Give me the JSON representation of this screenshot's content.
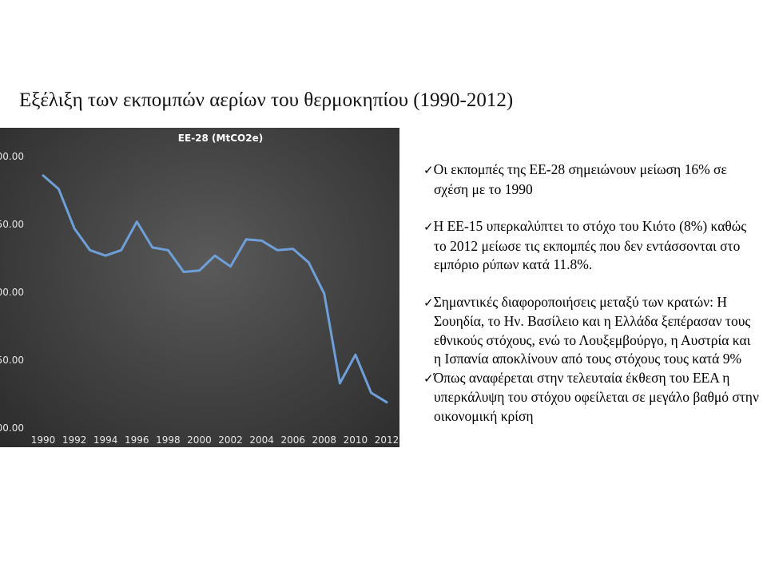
{
  "slide": {
    "title": "Εξέλιξη των εκπομπών αερίων του θερμοκηπίου (1990-2012)"
  },
  "bullets": [
    {
      "check": "✓",
      "text": "Οι εκπομπές της ΕΕ-28 σημειώνουν μείωση 16% σε σχέση με το 1990"
    },
    {
      "check": "✓",
      "text": "Η ΕΕ-15 υπερκαλύπτει το στόχο του Κιότο (8%) καθώς το 2012 μείωσε τις εκπομπές που δεν εντάσσονται στο εμπόριο ρύπων κατά 11.8%."
    },
    {
      "check": "✓",
      "text": "Σημαντικές διαφοροποιήσεις μεταξύ των κρατών: Η Σουηδία, το Ην. Βασίλειο και η Ελλάδα ξεπέρασαν τους εθνικούς στόχους, ενώ το Λουξεμβούργο, η Αυστρία και η Ισπανία αποκλίνουν από τους στόχους τους κατά 9%"
    },
    {
      "check": "✓",
      "text": "Όπως αναφέρεται στην τελευταία έκθεση του ΕΕΑ η υπερκάλυψη του στόχου οφείλεται σε μεγάλο βαθμό στην οικονομική κρίση"
    }
  ],
  "chart_data": {
    "type": "line",
    "title": "ΕΕ-28 (MtCO2e)",
    "xlabel": "",
    "ylabel": "",
    "x": [
      1990,
      1991,
      1992,
      1993,
      1994,
      1995,
      1996,
      1997,
      1998,
      1999,
      2000,
      2001,
      2002,
      2003,
      2004,
      2005,
      2006,
      2007,
      2008,
      2009,
      2010,
      2011,
      2012
    ],
    "x_tick_labels": [
      "1990",
      "1992",
      "1994",
      "1996",
      "1998",
      "2000",
      "2002",
      "2004",
      "2006",
      "2008",
      "2010",
      "2012"
    ],
    "y_tick_labels": [
      "00.00",
      "50.00",
      "00.00",
      "50.00",
      "00.00"
    ],
    "series": [
      {
        "values": [
          286,
          276,
          247,
          231,
          227,
          231,
          252,
          233,
          231,
          215,
          216,
          227,
          219,
          239,
          238,
          231,
          232,
          222,
          199,
          133,
          154,
          126,
          119
        ]
      }
    ],
    "ylim": [
      100,
      300
    ],
    "line_color": "#6f9fd8",
    "grid": false,
    "legend": "none"
  }
}
